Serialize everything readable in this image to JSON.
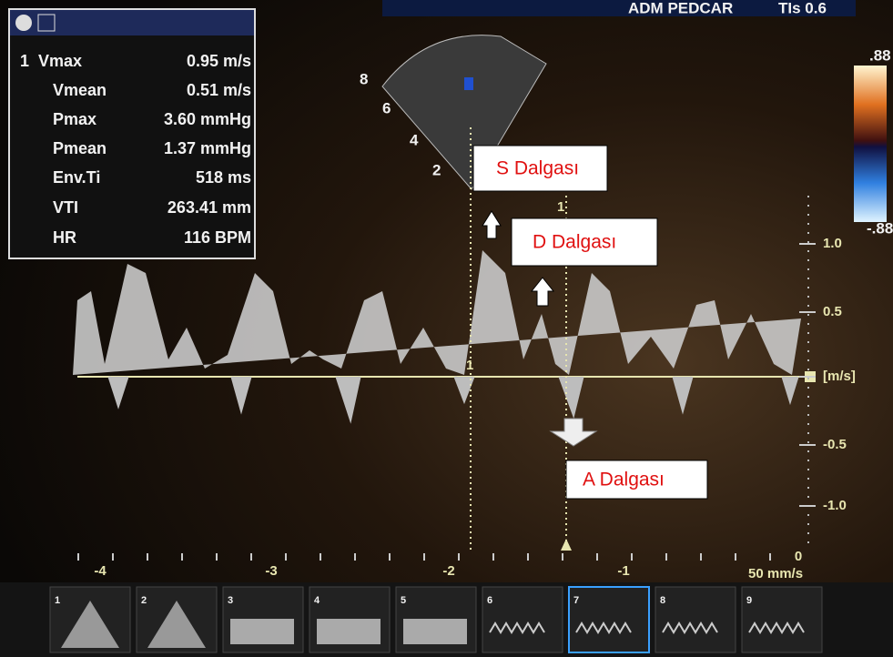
{
  "header": {
    "operator": "ADM PEDCAR",
    "thermal_index": "TIs 0.6"
  },
  "measurements": {
    "index": "1",
    "rows": [
      [
        "Vmax",
        "0.95 m/s"
      ],
      [
        "Vmean",
        "0.51 m/s"
      ],
      [
        "Pmax",
        "3.60 mmHg"
      ],
      [
        "Pmean",
        "1.37 mmHg"
      ],
      [
        "Env.Ti",
        "518 ms"
      ],
      [
        "VTI",
        "263.41 mm"
      ],
      [
        "HR",
        "116 BPM"
      ]
    ]
  },
  "color_scale": {
    "top": ".88",
    "bottom": "-.88"
  },
  "velocity_axis": {
    "labels": [
      "1.0",
      "0.5",
      "[m/s]",
      "-0.5",
      "-1.0"
    ]
  },
  "time_axis": {
    "labels": [
      "-4",
      "-3",
      "-2",
      "-1",
      "0"
    ],
    "sweep_speed": "50 mm/s"
  },
  "sector_depth": [
    "8",
    "6",
    "4",
    "2"
  ],
  "cursor_label": "1",
  "annotations": [
    "S Dalgası",
    "D Dalgası",
    "A Dalgası"
  ],
  "thumbnails": [
    "1",
    "2",
    "3",
    "4",
    "5",
    "6",
    "7",
    "8",
    "9"
  ]
}
